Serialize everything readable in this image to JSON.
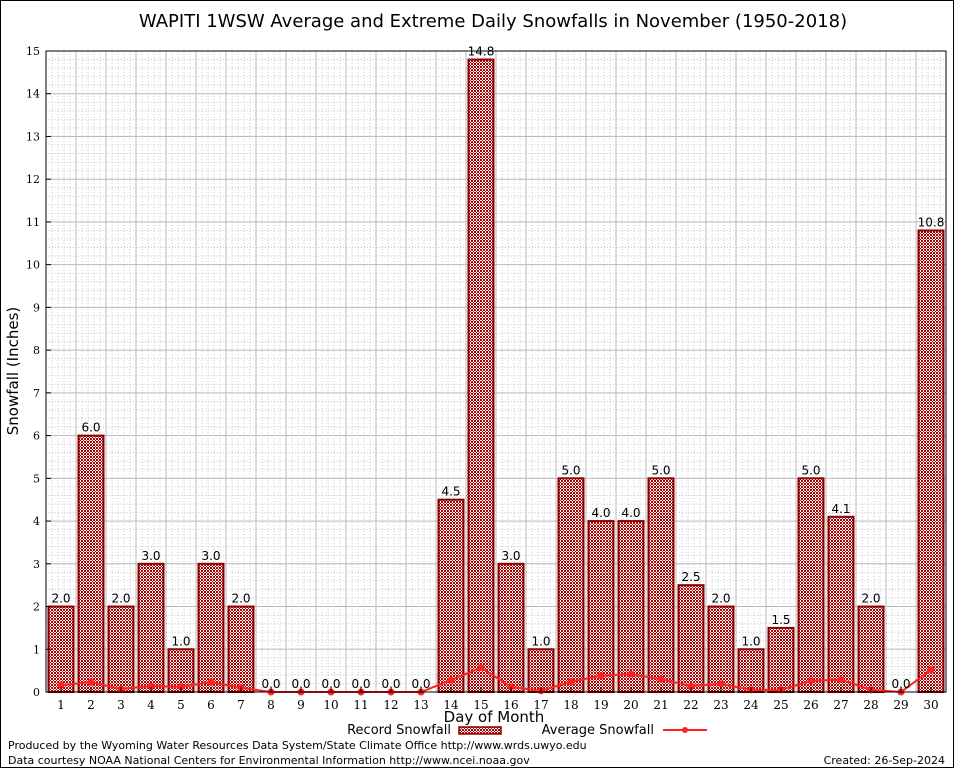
{
  "chart_data": {
    "type": "bar",
    "title": "WAPITI 1WSW Average and Extreme Daily Snowfalls in November (1950-2018)",
    "xlabel": "Day of Month",
    "ylabel": "Snowfall (Inches)",
    "ylim": [
      0,
      15
    ],
    "yticks": [
      "0",
      "1",
      "2",
      "3",
      "4",
      "5",
      "6",
      "7",
      "8",
      "9",
      "10",
      "11",
      "12",
      "13",
      "14",
      "15"
    ],
    "categories": [
      "1",
      "2",
      "3",
      "4",
      "5",
      "6",
      "7",
      "8",
      "9",
      "10",
      "11",
      "12",
      "13",
      "14",
      "15",
      "16",
      "17",
      "18",
      "19",
      "20",
      "21",
      "22",
      "23",
      "24",
      "25",
      "26",
      "27",
      "28",
      "29",
      "30"
    ],
    "series": [
      {
        "name": "Record Snowfall",
        "type": "bar",
        "color": "#b00000",
        "values": [
          2.0,
          6.0,
          2.0,
          3.0,
          1.0,
          3.0,
          2.0,
          0.0,
          0.0,
          0.0,
          0.0,
          0.0,
          0.0,
          4.5,
          14.8,
          3.0,
          1.0,
          5.0,
          4.0,
          4.0,
          5.0,
          2.5,
          2.0,
          1.0,
          1.5,
          5.0,
          4.1,
          2.0,
          0.0,
          10.8
        ],
        "labels": [
          "2.0",
          "6.0",
          "2.0",
          "3.0",
          "1.0",
          "3.0",
          "2.0",
          "0.0",
          "0.0",
          "0.0",
          "0.0",
          "0.0",
          "0.0",
          "4.5",
          "14.8",
          "3.0",
          "1.0",
          "5.0",
          "4.0",
          "4.0",
          "5.0",
          "2.5",
          "2.0",
          "1.0",
          "1.5",
          "5.0",
          "4.1",
          "2.0",
          "0.0",
          "10.8"
        ]
      },
      {
        "name": "Average Snowfall",
        "type": "line",
        "color": "#ff2020",
        "values": [
          0.16,
          0.23,
          0.07,
          0.14,
          0.12,
          0.23,
          0.1,
          0,
          0,
          0,
          0,
          0,
          0,
          0.28,
          0.57,
          0.12,
          0.03,
          0.24,
          0.38,
          0.42,
          0.3,
          0.14,
          0.19,
          0.05,
          0.05,
          0.26,
          0.29,
          0.05,
          0,
          0.52
        ]
      }
    ],
    "grid": true,
    "legend": "bottom"
  },
  "footer": {
    "line1": "Produced by the Wyoming Water Resources Data System/State Climate Office http://www.wrds.uwyo.edu",
    "line2": "Data courtesy NOAA National Centers for Environmental Information http://www.ncei.noaa.gov",
    "created": "Created: 26-Sep-2024"
  }
}
